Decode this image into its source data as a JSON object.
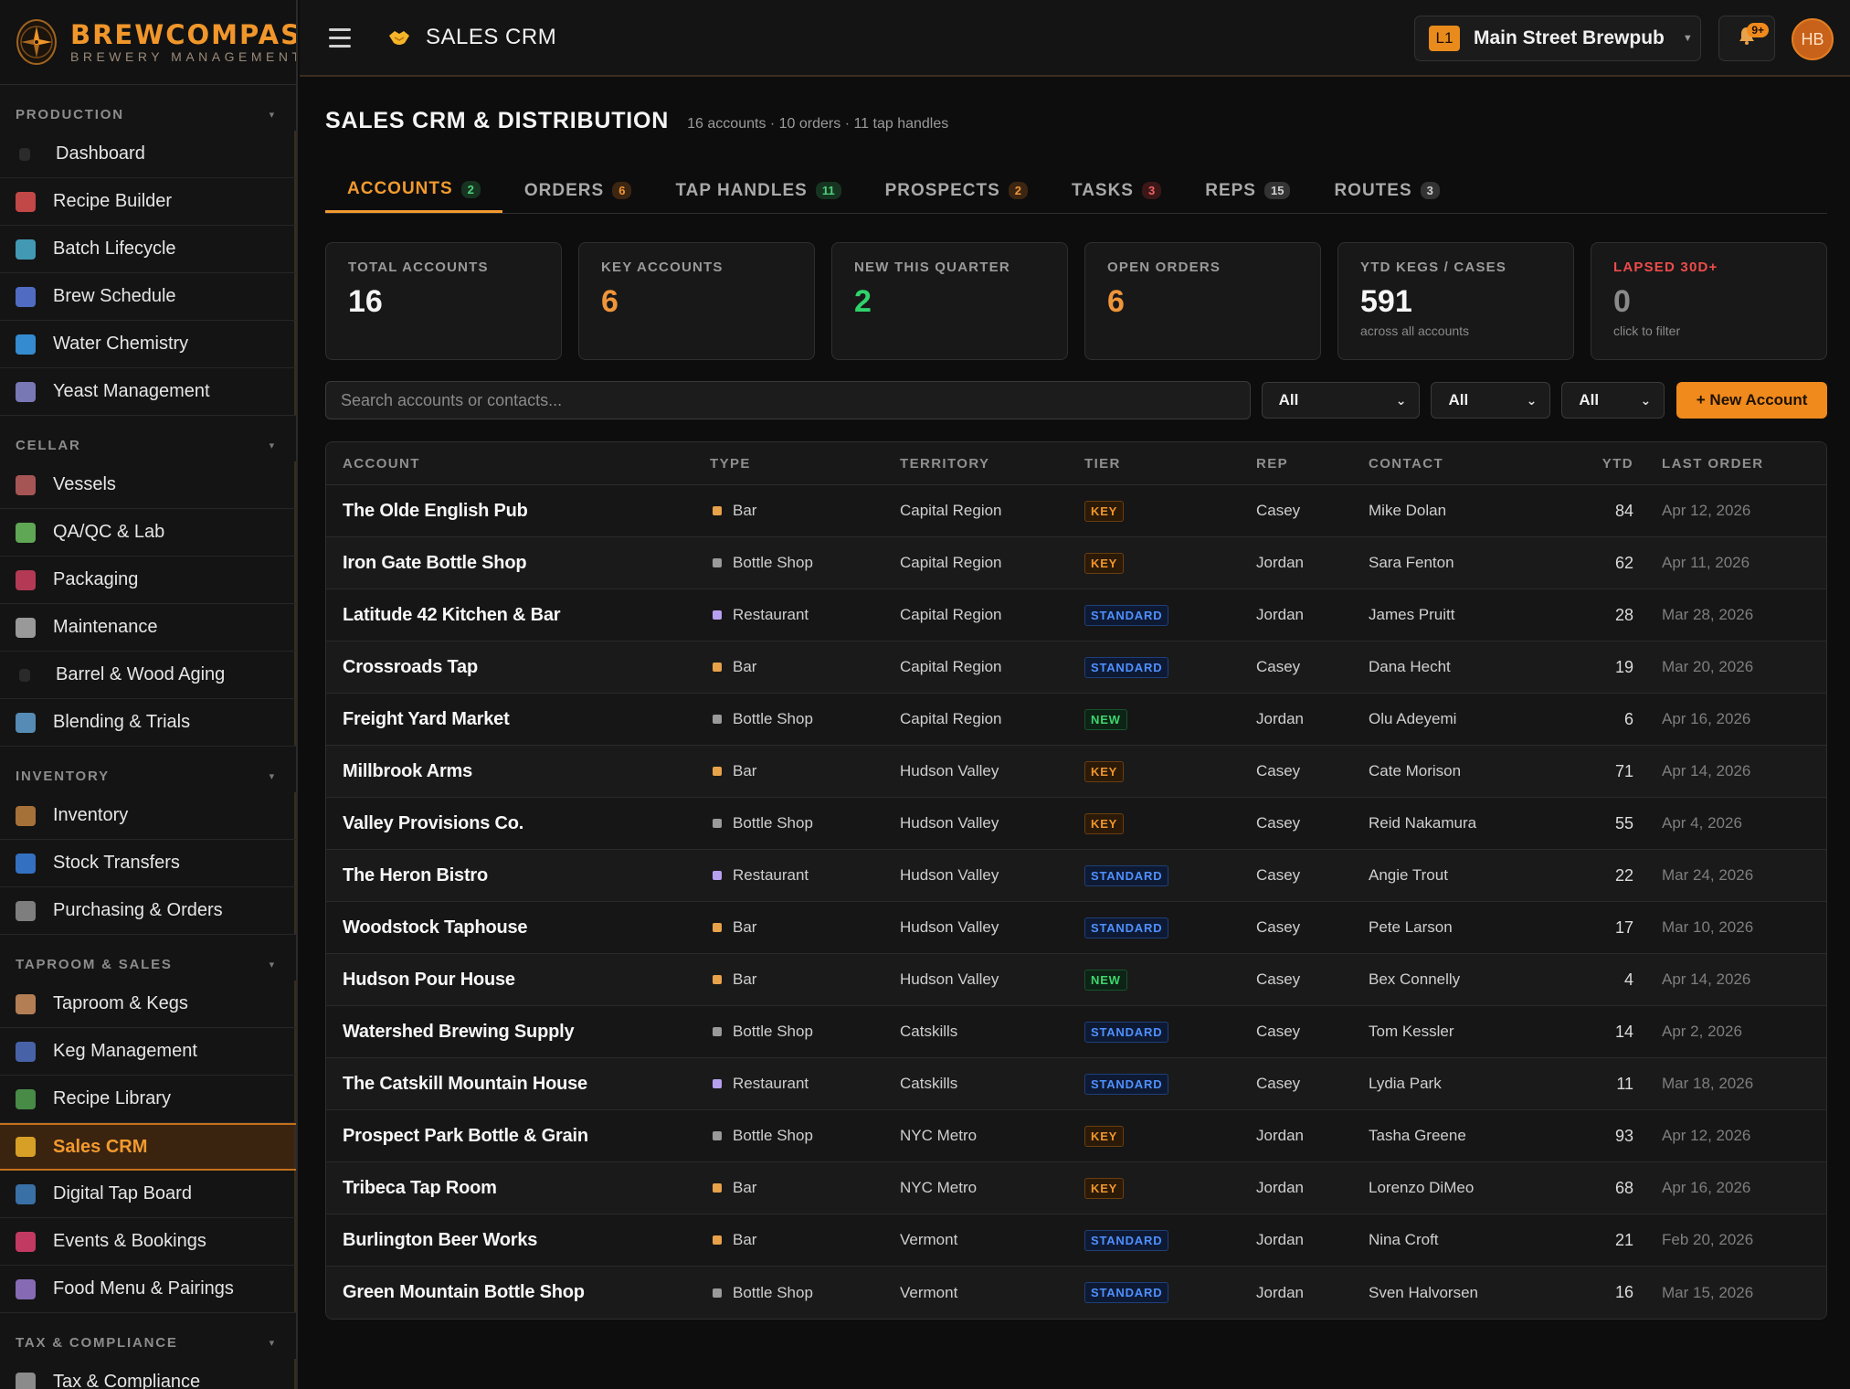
{
  "brand": {
    "name": "BREWCOMPASS",
    "tagline": "BREWERY MANAGEMENT"
  },
  "sidebar": {
    "sections": [
      {
        "title": "PRODUCTION",
        "items": [
          {
            "label": "Dashboard",
            "icon": "dashboard-icon"
          },
          {
            "label": "Recipe Builder",
            "icon": "recipe-icon"
          },
          {
            "label": "Batch Lifecycle",
            "icon": "batch-icon"
          },
          {
            "label": "Brew Schedule",
            "icon": "calendar-icon"
          },
          {
            "label": "Water Chemistry",
            "icon": "droplet-icon"
          },
          {
            "label": "Yeast Management",
            "icon": "microscope-icon"
          }
        ]
      },
      {
        "title": "CELLAR",
        "items": [
          {
            "label": "Vessels",
            "icon": "factory-icon"
          },
          {
            "label": "QA/QC & Lab",
            "icon": "test-tube-icon"
          },
          {
            "label": "Packaging",
            "icon": "can-icon"
          },
          {
            "label": "Maintenance",
            "icon": "wrench-icon"
          },
          {
            "label": "Barrel & Wood Aging",
            "icon": "barrel-icon"
          },
          {
            "label": "Blending & Trials",
            "icon": "blend-icon"
          }
        ]
      },
      {
        "title": "INVENTORY",
        "items": [
          {
            "label": "Inventory",
            "icon": "box-icon"
          },
          {
            "label": "Stock Transfers",
            "icon": "transfer-icon"
          },
          {
            "label": "Purchasing & Orders",
            "icon": "cart-icon"
          }
        ]
      },
      {
        "title": "TAPROOM & SALES",
        "items": [
          {
            "label": "Taproom & Kegs",
            "icon": "taproom-icon"
          },
          {
            "label": "Keg Management",
            "icon": "keg-icon"
          },
          {
            "label": "Recipe Library",
            "icon": "books-icon"
          },
          {
            "label": "Sales CRM",
            "icon": "handshake-icon",
            "active": true
          },
          {
            "label": "Digital Tap Board",
            "icon": "tv-icon"
          },
          {
            "label": "Events & Bookings",
            "icon": "ticket-icon"
          },
          {
            "label": "Food Menu & Pairings",
            "icon": "plate-icon"
          }
        ]
      },
      {
        "title": "TAX & COMPLIANCE",
        "items": [
          {
            "label": "Tax & Compliance",
            "icon": "bank-icon"
          }
        ]
      }
    ]
  },
  "topbar": {
    "title": "SALES CRM",
    "location_badge": "L1",
    "location_name": "Main Street Brewpub",
    "notif_count": "9+",
    "avatar": "HB"
  },
  "page": {
    "title": "SALES CRM & DISTRIBUTION",
    "meta": "16 accounts · 10 orders · 11 tap handles"
  },
  "tabs": [
    {
      "label": "ACCOUNTS",
      "count": "2",
      "color": "green",
      "active": true
    },
    {
      "label": "ORDERS",
      "count": "6",
      "color": "orange"
    },
    {
      "label": "TAP HANDLES",
      "count": "11",
      "color": "green"
    },
    {
      "label": "PROSPECTS",
      "count": "2",
      "color": "orange"
    },
    {
      "label": "TASKS",
      "count": "3",
      "color": "red"
    },
    {
      "label": "REPS",
      "count": "15",
      "color": "gray"
    },
    {
      "label": "ROUTES",
      "count": "3",
      "color": "gray"
    }
  ],
  "stats": [
    {
      "label": "TOTAL ACCOUNTS",
      "value": "16",
      "sub": "",
      "tone": ""
    },
    {
      "label": "KEY ACCOUNTS",
      "value": "6",
      "sub": "",
      "tone": "orange"
    },
    {
      "label": "NEW THIS QUARTER",
      "value": "2",
      "sub": "",
      "tone": "green"
    },
    {
      "label": "OPEN ORDERS",
      "value": "6",
      "sub": "",
      "tone": "orange"
    },
    {
      "label": "YTD KEGS / CASES",
      "value": "591",
      "sub": "across all accounts",
      "tone": ""
    },
    {
      "label": "LAPSED 30D+",
      "value": "0",
      "sub": "click to filter",
      "tone": "dim",
      "label_tone": "red"
    }
  ],
  "filters": {
    "search_placeholder": "Search accounts or contacts...",
    "selects": [
      "All",
      "All",
      "All"
    ],
    "new_button": "+ New Account"
  },
  "table": {
    "headers": [
      "ACCOUNT",
      "TYPE",
      "TERRITORY",
      "TIER",
      "REP",
      "CONTACT",
      "YTD",
      "LAST ORDER"
    ],
    "rows": [
      {
        "account": "The Olde English Pub",
        "type": "Bar",
        "territory": "Capital Region",
        "tier": "KEY",
        "rep": "Casey",
        "contact": "Mike Dolan",
        "ytd": "84",
        "last": "Apr 12, 2026"
      },
      {
        "account": "Iron Gate Bottle Shop",
        "type": "Bottle Shop",
        "territory": "Capital Region",
        "tier": "KEY",
        "rep": "Jordan",
        "contact": "Sara Fenton",
        "ytd": "62",
        "last": "Apr 11, 2026"
      },
      {
        "account": "Latitude 42 Kitchen & Bar",
        "type": "Restaurant",
        "territory": "Capital Region",
        "tier": "STANDARD",
        "rep": "Jordan",
        "contact": "James Pruitt",
        "ytd": "28",
        "last": "Mar 28, 2026"
      },
      {
        "account": "Crossroads Tap",
        "type": "Bar",
        "territory": "Capital Region",
        "tier": "STANDARD",
        "rep": "Casey",
        "contact": "Dana Hecht",
        "ytd": "19",
        "last": "Mar 20, 2026"
      },
      {
        "account": "Freight Yard Market",
        "type": "Bottle Shop",
        "territory": "Capital Region",
        "tier": "NEW",
        "rep": "Jordan",
        "contact": "Olu Adeyemi",
        "ytd": "6",
        "last": "Apr 16, 2026"
      },
      {
        "account": "Millbrook Arms",
        "type": "Bar",
        "territory": "Hudson Valley",
        "tier": "KEY",
        "rep": "Casey",
        "contact": "Cate Morison",
        "ytd": "71",
        "last": "Apr 14, 2026"
      },
      {
        "account": "Valley Provisions Co.",
        "type": "Bottle Shop",
        "territory": "Hudson Valley",
        "tier": "KEY",
        "rep": "Casey",
        "contact": "Reid Nakamura",
        "ytd": "55",
        "last": "Apr 4, 2026"
      },
      {
        "account": "The Heron Bistro",
        "type": "Restaurant",
        "territory": "Hudson Valley",
        "tier": "STANDARD",
        "rep": "Casey",
        "contact": "Angie Trout",
        "ytd": "22",
        "last": "Mar 24, 2026"
      },
      {
        "account": "Woodstock Taphouse",
        "type": "Bar",
        "territory": "Hudson Valley",
        "tier": "STANDARD",
        "rep": "Casey",
        "contact": "Pete Larson",
        "ytd": "17",
        "last": "Mar 10, 2026"
      },
      {
        "account": "Hudson Pour House",
        "type": "Bar",
        "territory": "Hudson Valley",
        "tier": "NEW",
        "rep": "Casey",
        "contact": "Bex Connelly",
        "ytd": "4",
        "last": "Apr 14, 2026"
      },
      {
        "account": "Watershed Brewing Supply",
        "type": "Bottle Shop",
        "territory": "Catskills",
        "tier": "STANDARD",
        "rep": "Casey",
        "contact": "Tom Kessler",
        "ytd": "14",
        "last": "Apr 2, 2026"
      },
      {
        "account": "The Catskill Mountain House",
        "type": "Restaurant",
        "territory": "Catskills",
        "tier": "STANDARD",
        "rep": "Casey",
        "contact": "Lydia Park",
        "ytd": "11",
        "last": "Mar 18, 2026"
      },
      {
        "account": "Prospect Park Bottle & Grain",
        "type": "Bottle Shop",
        "territory": "NYC Metro",
        "tier": "KEY",
        "rep": "Jordan",
        "contact": "Tasha Greene",
        "ytd": "93",
        "last": "Apr 12, 2026"
      },
      {
        "account": "Tribeca Tap Room",
        "type": "Bar",
        "territory": "NYC Metro",
        "tier": "KEY",
        "rep": "Jordan",
        "contact": "Lorenzo DiMeo",
        "ytd": "68",
        "last": "Apr 16, 2026"
      },
      {
        "account": "Burlington Beer Works",
        "type": "Bar",
        "territory": "Vermont",
        "tier": "STANDARD",
        "rep": "Jordan",
        "contact": "Nina Croft",
        "ytd": "21",
        "last": "Feb 20, 2026"
      },
      {
        "account": "Green Mountain Bottle Shop",
        "type": "Bottle Shop",
        "territory": "Vermont",
        "tier": "STANDARD",
        "rep": "Jordan",
        "contact": "Sven Halvorsen",
        "ytd": "16",
        "last": "Mar 15, 2026"
      }
    ]
  }
}
